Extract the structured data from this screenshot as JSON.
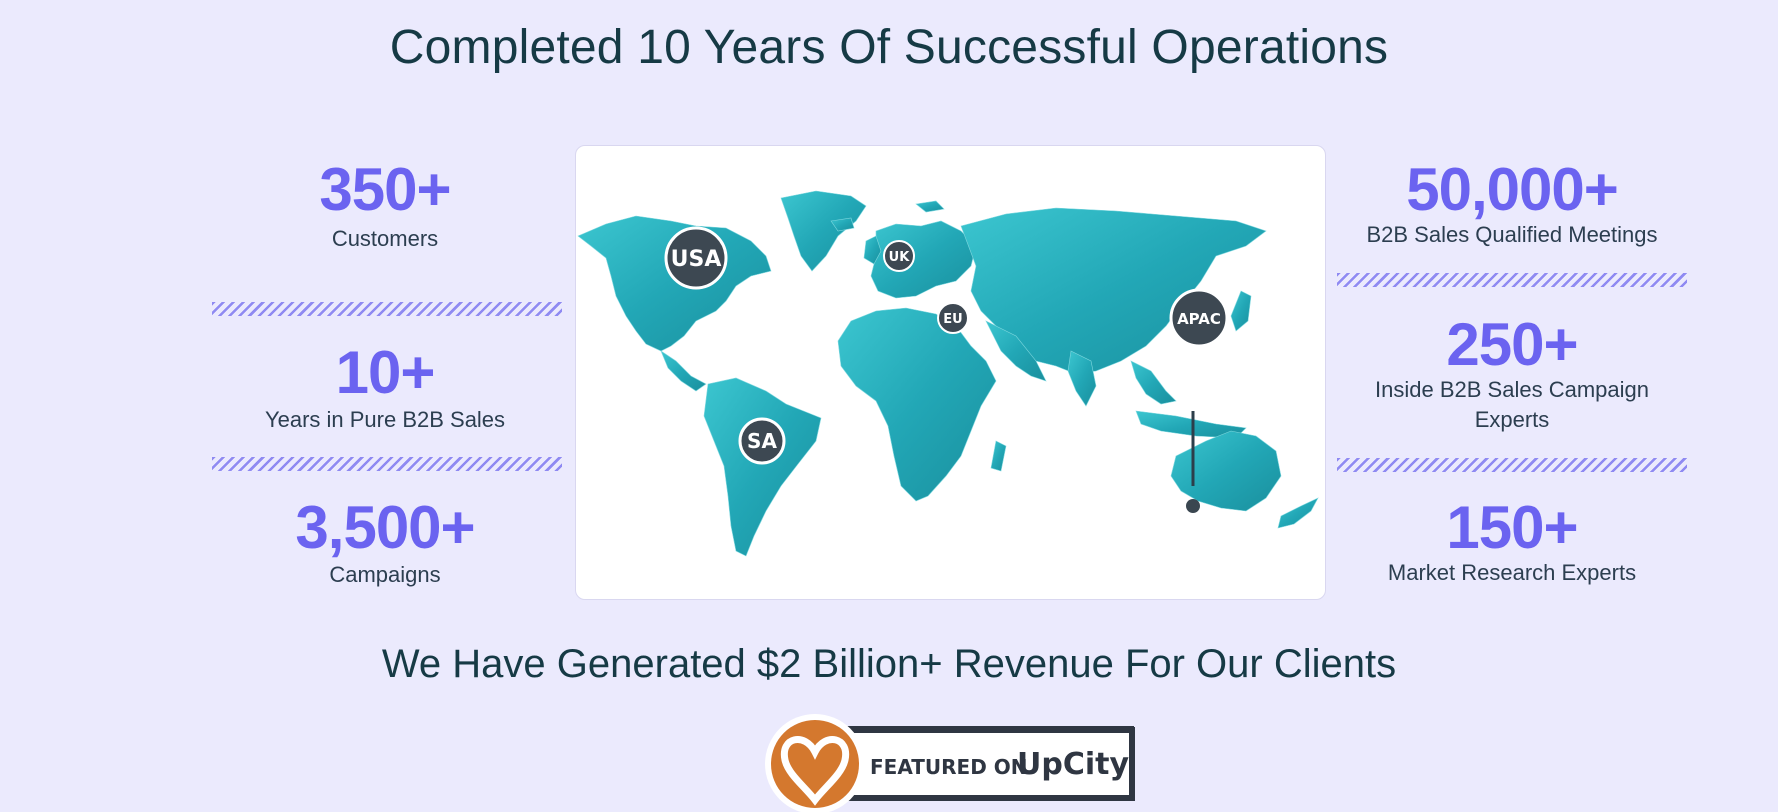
{
  "heading": "Completed 10 Years Of Successful Operations",
  "left_stats": [
    {
      "value": "350+",
      "label": "Customers"
    },
    {
      "value": "10+",
      "label": "Years in Pure B2B Sales"
    },
    {
      "value": "3,500+",
      "label": "Campaigns"
    }
  ],
  "right_stats": [
    {
      "value": "50,000+",
      "label": "B2B Sales Qualified Meetings"
    },
    {
      "value": "250+",
      "label_line1": "Inside B2B Sales Campaign",
      "label_line2": "Experts"
    },
    {
      "value": "150+",
      "label": "Market Research Experts"
    }
  ],
  "map": {
    "pins": {
      "usa": "USA",
      "uk": "UK",
      "eu": "EU",
      "apac": "APAC",
      "sa": "SA"
    },
    "land_color": "#2bb3c0"
  },
  "revenue_text": "We Have Generated $2 Billion+ Revenue For Our Clients",
  "badge": {
    "featured_on": "FEATURED ON",
    "brand": "UpCity"
  },
  "colors": {
    "accent": "#6b63f0",
    "background": "#ebeafd",
    "heading": "#163a45",
    "badge_orange": "#d4782e"
  }
}
